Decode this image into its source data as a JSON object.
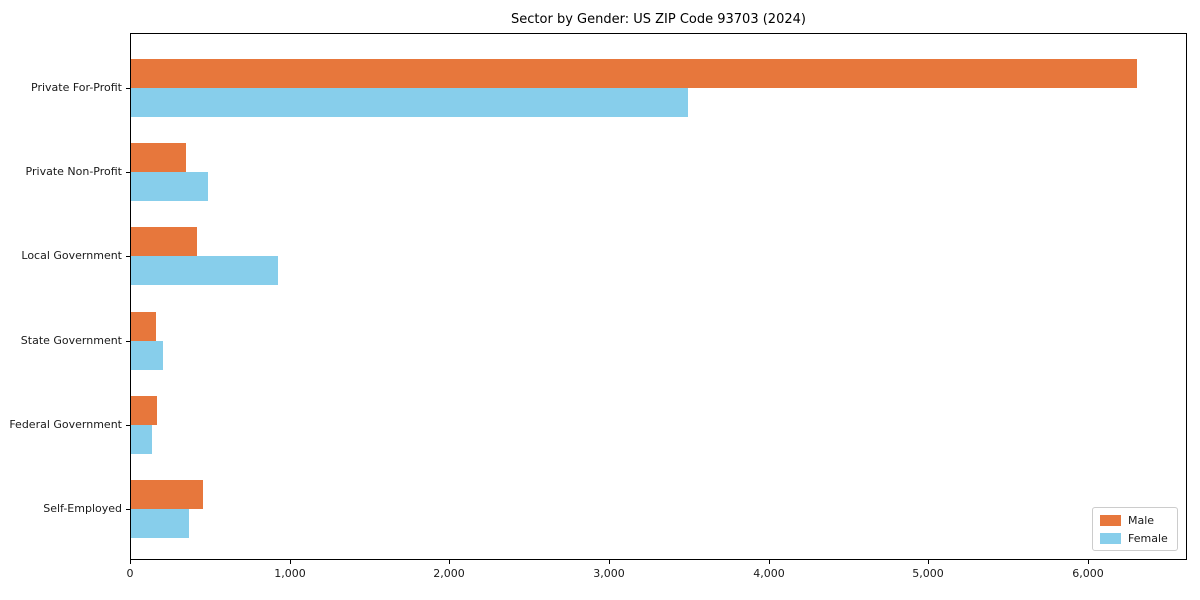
{
  "chart_data": {
    "type": "bar",
    "orientation": "horizontal",
    "title": "Sector by Gender: US ZIP Code 93703 (2024)",
    "categories": [
      "Private For-Profit",
      "Private Non-Profit",
      "Local Government",
      "State Government",
      "Federal Government",
      "Self-Employed"
    ],
    "series": [
      {
        "name": "Male",
        "color": "#e7773c",
        "values": [
          6300,
          345,
          415,
          155,
          165,
          450
        ]
      },
      {
        "name": "Female",
        "color": "#87ceeb",
        "values": [
          3490,
          480,
          920,
          200,
          130,
          365
        ]
      }
    ],
    "xlabel": "",
    "ylabel": "",
    "xlim": [
      0,
      6620
    ],
    "x_ticks": [
      0,
      1000,
      2000,
      3000,
      4000,
      5000,
      6000
    ],
    "x_tick_labels": [
      "0",
      "1,000",
      "2,000",
      "3,000",
      "4,000",
      "5,000",
      "6,000"
    ],
    "grid": false,
    "legend": {
      "position": "lower right"
    },
    "colors": {
      "axis": "#000000",
      "legend_border": "#cccccc",
      "background": "#ffffff"
    }
  }
}
